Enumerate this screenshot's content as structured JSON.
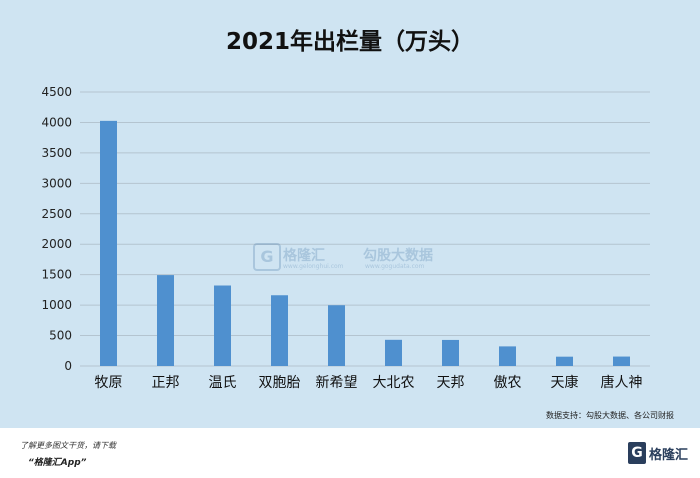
{
  "chart_data": {
    "type": "bar",
    "title": "2021年出栏量（万头）",
    "categories": [
      "牧原",
      "正邦",
      "温氏",
      "双胞胎",
      "新希望",
      "大北农",
      "天邦",
      "傲农",
      "天康",
      "唐人神"
    ],
    "values": [
      4026,
      1493,
      1322,
      1162,
      998,
      430,
      428,
      322,
      153,
      155
    ],
    "ylim": [
      0,
      4500
    ],
    "yticks": [
      0,
      500,
      1000,
      1500,
      2000,
      2500,
      3000,
      3500,
      4000,
      4500
    ],
    "grid": true,
    "bar_color": "#4f90cf"
  },
  "source_text": "数据支持：勾股大数据、各公司财报",
  "watermark": {
    "logo_glyph": "G",
    "brand1": "格隆汇",
    "site1": "www.gelonghui.com",
    "brand2": "勾股大数据",
    "site2": "www.gogudata.com"
  },
  "footer": {
    "line1": "了解更多图文干货，请下载",
    "line2": "“格隆汇App”",
    "logo_glyph": "G",
    "logo_text": "格隆汇"
  }
}
